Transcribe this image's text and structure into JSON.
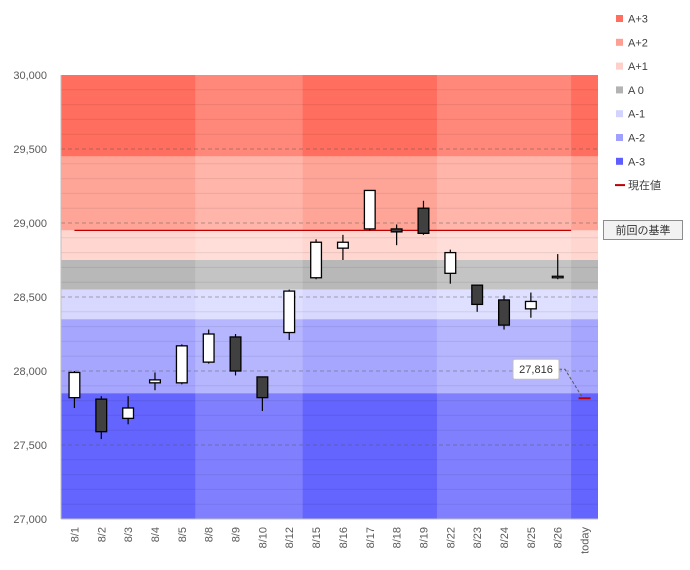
{
  "chart_data": {
    "type": "candlestick",
    "categories": [
      "8/1",
      "8/2",
      "8/3",
      "8/4",
      "8/5",
      "8/8",
      "8/9",
      "8/10",
      "8/12",
      "8/15",
      "8/16",
      "8/17",
      "8/18",
      "8/19",
      "8/22",
      "8/23",
      "8/24",
      "8/25",
      "8/26",
      "today"
    ],
    "ohlc": [
      {
        "open": 27820,
        "high": 28000,
        "low": 27750,
        "close": 27990
      },
      {
        "open": 27810,
        "high": 27830,
        "low": 27540,
        "close": 27590
      },
      {
        "open": 27680,
        "high": 27830,
        "low": 27640,
        "close": 27750
      },
      {
        "open": 27920,
        "high": 27990,
        "low": 27870,
        "close": 27940
      },
      {
        "open": 27920,
        "high": 28180,
        "low": 27910,
        "close": 28170
      },
      {
        "open": 28060,
        "high": 28280,
        "low": 28050,
        "close": 28250
      },
      {
        "open": 28230,
        "high": 28250,
        "low": 27970,
        "close": 28000
      },
      {
        "open": 27960,
        "high": 27960,
        "low": 27730,
        "close": 27820
      },
      {
        "open": 28260,
        "high": 28550,
        "low": 28210,
        "close": 28540
      },
      {
        "open": 28630,
        "high": 28890,
        "low": 28620,
        "close": 28870
      },
      {
        "open": 28830,
        "high": 28920,
        "low": 28750,
        "close": 28870
      },
      {
        "open": 28960,
        "high": 29220,
        "low": 28950,
        "close": 29220
      },
      {
        "open": 28960,
        "high": 28990,
        "low": 28850,
        "close": 28940
      },
      {
        "open": 29100,
        "high": 29150,
        "low": 28920,
        "close": 28930
      },
      {
        "open": 28660,
        "high": 28820,
        "low": 28590,
        "close": 28800
      },
      {
        "open": 28580,
        "high": 28580,
        "low": 28400,
        "close": 28450
      },
      {
        "open": 28480,
        "high": 28510,
        "low": 28280,
        "close": 28310
      },
      {
        "open": 28420,
        "high": 28530,
        "low": 28360,
        "close": 28470
      },
      {
        "open": 28630,
        "high": 28790,
        "low": 28620,
        "close": 28640
      },
      null
    ],
    "current_value": 28950,
    "current_label": "現在値",
    "today_value": 27816,
    "today_callout": "27,816",
    "base_label": "前回の基準",
    "ylim": [
      27000,
      30000
    ],
    "yticks": [
      27000,
      27500,
      28000,
      28500,
      29000,
      29500,
      30000
    ],
    "ytick_labels": [
      "27,000",
      "27,500",
      "28,000",
      "28,500",
      "29,000",
      "29,500",
      "30,000"
    ],
    "grid": true,
    "legend_position": "right",
    "bands": [
      {
        "name": "A+3",
        "from": 29450,
        "to": 30000,
        "color": "#ff6e5e",
        "legend_color": "#ff6e5e"
      },
      {
        "name": "A+2",
        "from": 28950,
        "to": 29450,
        "color": "#ffa598",
        "legend_color": "#ff9f93"
      },
      {
        "name": "A+1",
        "from": 28750,
        "to": 28950,
        "color": "#ffd6d0",
        "legend_color": "#ffcfc9"
      },
      {
        "name": "A 0",
        "from": 28550,
        "to": 28750,
        "color": "#b8b8b8",
        "legend_color": "#b3b3b3"
      },
      {
        "name": "A-1",
        "from": 28350,
        "to": 28550,
        "color": "#d8d8ff",
        "legend_color": "#d3d3ff"
      },
      {
        "name": "A-2",
        "from": 27850,
        "to": 28350,
        "color": "#a6a6ff",
        "legend_color": "#a0a0ff"
      },
      {
        "name": "A-3",
        "from": 27000,
        "to": 27850,
        "color": "#6464ff",
        "legend_color": "#5e5eff"
      }
    ],
    "current_line_color": "#c00000",
    "bullish_color": "#ffffff",
    "bearish_color": "#404040"
  }
}
